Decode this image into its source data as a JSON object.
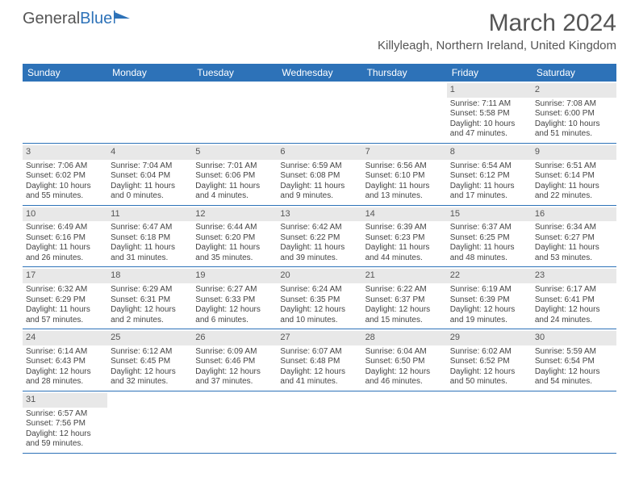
{
  "logo": {
    "text1": "General",
    "text2": "Blue",
    "icon_color": "#2d72b8"
  },
  "title": "March 2024",
  "location": "Killyleagh, Northern Ireland, United Kingdom",
  "weekday_bg": "#2d72b8",
  "weekday_fg": "#ffffff",
  "daynum_bg": "#e8e8e8",
  "border_color": "#2d72b8",
  "weekdays": [
    "Sunday",
    "Monday",
    "Tuesday",
    "Wednesday",
    "Thursday",
    "Friday",
    "Saturday"
  ],
  "weeks": [
    [
      {
        "n": "",
        "sr": "",
        "ss": "",
        "d1": "",
        "d2": ""
      },
      {
        "n": "",
        "sr": "",
        "ss": "",
        "d1": "",
        "d2": ""
      },
      {
        "n": "",
        "sr": "",
        "ss": "",
        "d1": "",
        "d2": ""
      },
      {
        "n": "",
        "sr": "",
        "ss": "",
        "d1": "",
        "d2": ""
      },
      {
        "n": "",
        "sr": "",
        "ss": "",
        "d1": "",
        "d2": ""
      },
      {
        "n": "1",
        "sr": "Sunrise: 7:11 AM",
        "ss": "Sunset: 5:58 PM",
        "d1": "Daylight: 10 hours",
        "d2": "and 47 minutes."
      },
      {
        "n": "2",
        "sr": "Sunrise: 7:08 AM",
        "ss": "Sunset: 6:00 PM",
        "d1": "Daylight: 10 hours",
        "d2": "and 51 minutes."
      }
    ],
    [
      {
        "n": "3",
        "sr": "Sunrise: 7:06 AM",
        "ss": "Sunset: 6:02 PM",
        "d1": "Daylight: 10 hours",
        "d2": "and 55 minutes."
      },
      {
        "n": "4",
        "sr": "Sunrise: 7:04 AM",
        "ss": "Sunset: 6:04 PM",
        "d1": "Daylight: 11 hours",
        "d2": "and 0 minutes."
      },
      {
        "n": "5",
        "sr": "Sunrise: 7:01 AM",
        "ss": "Sunset: 6:06 PM",
        "d1": "Daylight: 11 hours",
        "d2": "and 4 minutes."
      },
      {
        "n": "6",
        "sr": "Sunrise: 6:59 AM",
        "ss": "Sunset: 6:08 PM",
        "d1": "Daylight: 11 hours",
        "d2": "and 9 minutes."
      },
      {
        "n": "7",
        "sr": "Sunrise: 6:56 AM",
        "ss": "Sunset: 6:10 PM",
        "d1": "Daylight: 11 hours",
        "d2": "and 13 minutes."
      },
      {
        "n": "8",
        "sr": "Sunrise: 6:54 AM",
        "ss": "Sunset: 6:12 PM",
        "d1": "Daylight: 11 hours",
        "d2": "and 17 minutes."
      },
      {
        "n": "9",
        "sr": "Sunrise: 6:51 AM",
        "ss": "Sunset: 6:14 PM",
        "d1": "Daylight: 11 hours",
        "d2": "and 22 minutes."
      }
    ],
    [
      {
        "n": "10",
        "sr": "Sunrise: 6:49 AM",
        "ss": "Sunset: 6:16 PM",
        "d1": "Daylight: 11 hours",
        "d2": "and 26 minutes."
      },
      {
        "n": "11",
        "sr": "Sunrise: 6:47 AM",
        "ss": "Sunset: 6:18 PM",
        "d1": "Daylight: 11 hours",
        "d2": "and 31 minutes."
      },
      {
        "n": "12",
        "sr": "Sunrise: 6:44 AM",
        "ss": "Sunset: 6:20 PM",
        "d1": "Daylight: 11 hours",
        "d2": "and 35 minutes."
      },
      {
        "n": "13",
        "sr": "Sunrise: 6:42 AM",
        "ss": "Sunset: 6:22 PM",
        "d1": "Daylight: 11 hours",
        "d2": "and 39 minutes."
      },
      {
        "n": "14",
        "sr": "Sunrise: 6:39 AM",
        "ss": "Sunset: 6:23 PM",
        "d1": "Daylight: 11 hours",
        "d2": "and 44 minutes."
      },
      {
        "n": "15",
        "sr": "Sunrise: 6:37 AM",
        "ss": "Sunset: 6:25 PM",
        "d1": "Daylight: 11 hours",
        "d2": "and 48 minutes."
      },
      {
        "n": "16",
        "sr": "Sunrise: 6:34 AM",
        "ss": "Sunset: 6:27 PM",
        "d1": "Daylight: 11 hours",
        "d2": "and 53 minutes."
      }
    ],
    [
      {
        "n": "17",
        "sr": "Sunrise: 6:32 AM",
        "ss": "Sunset: 6:29 PM",
        "d1": "Daylight: 11 hours",
        "d2": "and 57 minutes."
      },
      {
        "n": "18",
        "sr": "Sunrise: 6:29 AM",
        "ss": "Sunset: 6:31 PM",
        "d1": "Daylight: 12 hours",
        "d2": "and 2 minutes."
      },
      {
        "n": "19",
        "sr": "Sunrise: 6:27 AM",
        "ss": "Sunset: 6:33 PM",
        "d1": "Daylight: 12 hours",
        "d2": "and 6 minutes."
      },
      {
        "n": "20",
        "sr": "Sunrise: 6:24 AM",
        "ss": "Sunset: 6:35 PM",
        "d1": "Daylight: 12 hours",
        "d2": "and 10 minutes."
      },
      {
        "n": "21",
        "sr": "Sunrise: 6:22 AM",
        "ss": "Sunset: 6:37 PM",
        "d1": "Daylight: 12 hours",
        "d2": "and 15 minutes."
      },
      {
        "n": "22",
        "sr": "Sunrise: 6:19 AM",
        "ss": "Sunset: 6:39 PM",
        "d1": "Daylight: 12 hours",
        "d2": "and 19 minutes."
      },
      {
        "n": "23",
        "sr": "Sunrise: 6:17 AM",
        "ss": "Sunset: 6:41 PM",
        "d1": "Daylight: 12 hours",
        "d2": "and 24 minutes."
      }
    ],
    [
      {
        "n": "24",
        "sr": "Sunrise: 6:14 AM",
        "ss": "Sunset: 6:43 PM",
        "d1": "Daylight: 12 hours",
        "d2": "and 28 minutes."
      },
      {
        "n": "25",
        "sr": "Sunrise: 6:12 AM",
        "ss": "Sunset: 6:45 PM",
        "d1": "Daylight: 12 hours",
        "d2": "and 32 minutes."
      },
      {
        "n": "26",
        "sr": "Sunrise: 6:09 AM",
        "ss": "Sunset: 6:46 PM",
        "d1": "Daylight: 12 hours",
        "d2": "and 37 minutes."
      },
      {
        "n": "27",
        "sr": "Sunrise: 6:07 AM",
        "ss": "Sunset: 6:48 PM",
        "d1": "Daylight: 12 hours",
        "d2": "and 41 minutes."
      },
      {
        "n": "28",
        "sr": "Sunrise: 6:04 AM",
        "ss": "Sunset: 6:50 PM",
        "d1": "Daylight: 12 hours",
        "d2": "and 46 minutes."
      },
      {
        "n": "29",
        "sr": "Sunrise: 6:02 AM",
        "ss": "Sunset: 6:52 PM",
        "d1": "Daylight: 12 hours",
        "d2": "and 50 minutes."
      },
      {
        "n": "30",
        "sr": "Sunrise: 5:59 AM",
        "ss": "Sunset: 6:54 PM",
        "d1": "Daylight: 12 hours",
        "d2": "and 54 minutes."
      }
    ],
    [
      {
        "n": "31",
        "sr": "Sunrise: 6:57 AM",
        "ss": "Sunset: 7:56 PM",
        "d1": "Daylight: 12 hours",
        "d2": "and 59 minutes."
      },
      {
        "n": "",
        "sr": "",
        "ss": "",
        "d1": "",
        "d2": ""
      },
      {
        "n": "",
        "sr": "",
        "ss": "",
        "d1": "",
        "d2": ""
      },
      {
        "n": "",
        "sr": "",
        "ss": "",
        "d1": "",
        "d2": ""
      },
      {
        "n": "",
        "sr": "",
        "ss": "",
        "d1": "",
        "d2": ""
      },
      {
        "n": "",
        "sr": "",
        "ss": "",
        "d1": "",
        "d2": ""
      },
      {
        "n": "",
        "sr": "",
        "ss": "",
        "d1": "",
        "d2": ""
      }
    ]
  ]
}
